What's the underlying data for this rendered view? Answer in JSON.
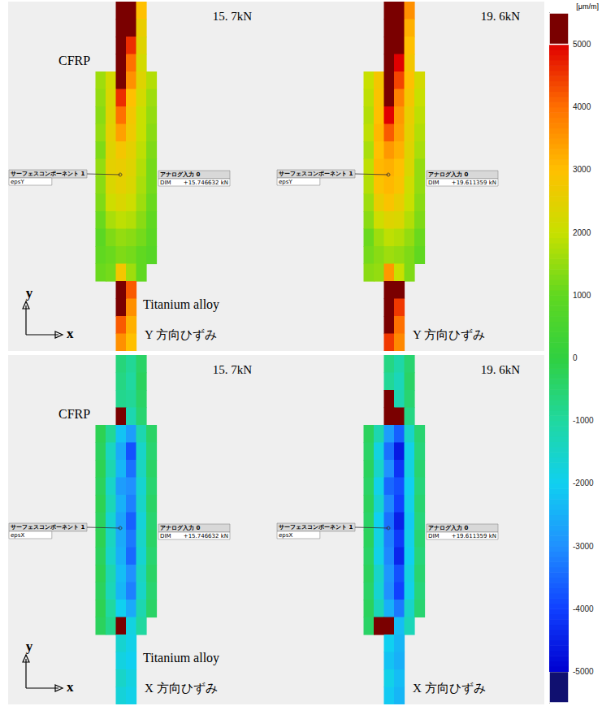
{
  "chart_data": {
    "type": "heatmap",
    "tick_labels": false,
    "color_bar": {
      "label": "[μm/m]",
      "range": [
        -5500,
        5500
      ],
      "color_range": [
        -5000,
        5000
      ],
      "ticks": [
        -5000,
        -4000,
        -3000,
        -2000,
        -1000,
        0,
        1000,
        2000,
        3000,
        4000,
        5000
      ]
    },
    "panels": [
      {
        "title": "15. 7kN",
        "caption": "Y 方向ひずみ",
        "upper_label": "CFRP",
        "lower_label": "Titanium alloy",
        "axis_names": [
          "x",
          "y"
        ],
        "probe_box": [
          "サーフェスコンポーネント 1",
          "epsY"
        ],
        "load_box": [
          "アナログ入力 0",
          "DIM",
          "+15.746632 kN"
        ],
        "cells": [
          [
            null,
            null,
            null,
            5800,
            5600,
            3000,
            null,
            null
          ],
          [
            null,
            null,
            null,
            5800,
            5200,
            2600,
            null,
            null
          ],
          [
            null,
            null,
            null,
            5800,
            4600,
            2400,
            null,
            null
          ],
          [
            null,
            null,
            null,
            5600,
            4000,
            2200,
            null,
            null
          ],
          [
            null,
            1600,
            2200,
            5200,
            3600,
            2400,
            1800,
            null
          ],
          [
            null,
            1500,
            2300,
            4600,
            3000,
            2200,
            1600,
            null
          ],
          [
            null,
            1400,
            2400,
            4000,
            2800,
            2000,
            1500,
            null
          ],
          [
            null,
            1500,
            2500,
            3400,
            2700,
            2000,
            1400,
            null
          ],
          [
            null,
            1300,
            2400,
            2800,
            2500,
            1900,
            1300,
            null
          ],
          [
            null,
            1500,
            2500,
            2600,
            2400,
            1800,
            1200,
            null
          ],
          [
            null,
            1400,
            2300,
            2500,
            2300,
            1700,
            1200,
            null
          ],
          [
            null,
            1300,
            2100,
            2300,
            2100,
            1600,
            1100,
            null
          ],
          [
            null,
            1100,
            1700,
            1900,
            1800,
            1400,
            1000,
            null
          ],
          [
            null,
            900,
            1300,
            1500,
            1400,
            1200,
            900,
            null
          ],
          [
            null,
            1000,
            1100,
            1300,
            1200,
            1000,
            800,
            null
          ],
          [
            null,
            1100,
            1200,
            2800,
            1600,
            1000,
            null,
            null
          ],
          [
            null,
            null,
            null,
            5800,
            4200,
            null,
            null,
            null
          ],
          [
            null,
            null,
            null,
            5400,
            3600,
            null,
            null,
            null
          ],
          [
            null,
            null,
            null,
            4200,
            3200,
            null,
            null,
            null
          ],
          [
            null,
            null,
            null,
            3600,
            3000,
            null,
            null,
            null
          ]
        ]
      },
      {
        "title": "19. 6kN",
        "caption": "Y 方向ひずみ",
        "probe_box": [
          "サーフェスコンポーネント 1",
          "epsY"
        ],
        "load_box": [
          "アナログ入力 0",
          "DIM",
          "+19.611359 kN"
        ],
        "cells": [
          [
            null,
            null,
            null,
            5800,
            5800,
            3600,
            null,
            null
          ],
          [
            null,
            null,
            null,
            5800,
            5800,
            3200,
            null,
            null
          ],
          [
            null,
            null,
            null,
            5800,
            5400,
            3000,
            null,
            null
          ],
          [
            null,
            null,
            null,
            5800,
            5000,
            2800,
            null,
            null
          ],
          [
            null,
            2000,
            2800,
            5800,
            4400,
            3000,
            2200,
            null
          ],
          [
            null,
            1900,
            2900,
            5600,
            3800,
            2800,
            2000,
            null
          ],
          [
            null,
            1800,
            3000,
            5000,
            3500,
            2600,
            1900,
            null
          ],
          [
            null,
            1900,
            3100,
            4200,
            3400,
            2500,
            1800,
            null
          ],
          [
            null,
            1700,
            3000,
            3500,
            3200,
            2400,
            1700,
            null
          ],
          [
            null,
            1900,
            3100,
            3200,
            3000,
            2300,
            1500,
            null
          ],
          [
            null,
            1800,
            2900,
            3100,
            2900,
            2100,
            1500,
            null
          ],
          [
            null,
            1600,
            2600,
            2900,
            2600,
            2000,
            1400,
            null
          ],
          [
            null,
            1400,
            2100,
            2400,
            2300,
            1800,
            1300,
            null
          ],
          [
            null,
            1100,
            1600,
            1900,
            1800,
            1500,
            1100,
            null
          ],
          [
            null,
            1200,
            1400,
            1600,
            1500,
            1300,
            1000,
            null
          ],
          [
            null,
            1400,
            1500,
            3500,
            2000,
            1300,
            null,
            null
          ],
          [
            null,
            null,
            null,
            5800,
            5200,
            null,
            null,
            null
          ],
          [
            null,
            null,
            null,
            5800,
            4500,
            null,
            null,
            null
          ],
          [
            null,
            null,
            null,
            5200,
            4000,
            null,
            null,
            null
          ],
          [
            null,
            null,
            null,
            4500,
            3700,
            null,
            null,
            null
          ]
        ]
      },
      {
        "title": "15. 7kN",
        "caption": "X 方向ひずみ",
        "upper_label": "CFRP",
        "lower_label": "Titanium alloy",
        "axis_names": [
          "x",
          "y"
        ],
        "probe_box": [
          "サーフェスコンポーネント 1",
          "epsX"
        ],
        "load_box": [
          "アナログ入力 0",
          "DIM",
          "+15.746632 kN"
        ],
        "cells": [
          [
            null,
            null,
            null,
            -600,
            -900,
            -400,
            null,
            null
          ],
          [
            null,
            null,
            null,
            -700,
            -1000,
            -300,
            null,
            null
          ],
          [
            null,
            null,
            null,
            -800,
            -900,
            -400,
            null,
            null
          ],
          [
            null,
            null,
            null,
            5800,
            -1200,
            -500,
            null,
            null
          ],
          [
            null,
            -200,
            -900,
            -2200,
            -2800,
            -1200,
            -400,
            null
          ],
          [
            null,
            -300,
            -1400,
            -2600,
            -3800,
            -1500,
            -500,
            null
          ],
          [
            null,
            -200,
            -1200,
            -2400,
            -3400,
            -1400,
            -400,
            null
          ],
          [
            null,
            -300,
            -1500,
            -2800,
            -3000,
            -1600,
            -500,
            null
          ],
          [
            null,
            -200,
            -1300,
            -2500,
            -3200,
            -1500,
            -400,
            null
          ],
          [
            null,
            -300,
            -1600,
            -2700,
            -3600,
            -1700,
            -500,
            null
          ],
          [
            null,
            -200,
            -1400,
            -2600,
            -3300,
            -1500,
            -400,
            null
          ],
          [
            null,
            -300,
            -1500,
            -2500,
            -3500,
            -1600,
            -500,
            null
          ],
          [
            null,
            -200,
            -1200,
            -2300,
            -3000,
            -1400,
            -400,
            null
          ],
          [
            null,
            -300,
            -1300,
            -2400,
            -3200,
            -1500,
            -500,
            null
          ],
          [
            null,
            -200,
            -1000,
            -2000,
            -2600,
            -1200,
            -400,
            null
          ],
          [
            null,
            -300,
            -800,
            5800,
            -1800,
            -1000,
            null,
            null
          ],
          [
            null,
            null,
            null,
            -1600,
            -1900,
            null,
            null,
            null
          ],
          [
            null,
            null,
            null,
            -1800,
            -2000,
            null,
            null,
            null
          ],
          [
            null,
            null,
            null,
            -1500,
            -1800,
            null,
            null,
            null
          ],
          [
            null,
            null,
            null,
            -1700,
            -1900,
            null,
            null,
            null
          ]
        ]
      },
      {
        "title": "19. 6kN",
        "caption": "X 方向ひずみ",
        "probe_box": [
          "サーフェスコンポーネント 1",
          "epsX"
        ],
        "load_box": [
          "アナログ入力 0",
          "DIM",
          "+19.611359 kN"
        ],
        "cells": [
          [
            null,
            null,
            null,
            -700,
            -1100,
            -500,
            null,
            null
          ],
          [
            null,
            null,
            null,
            -900,
            -1300,
            -400,
            null,
            null
          ],
          [
            null,
            null,
            null,
            5800,
            -1200,
            -500,
            null,
            null
          ],
          [
            null,
            null,
            null,
            5800,
            5800,
            -700,
            null,
            null
          ],
          [
            null,
            -300,
            -1200,
            -2800,
            -3600,
            -1500,
            -500,
            null
          ],
          [
            null,
            -400,
            -1800,
            -3400,
            -4600,
            -1900,
            -600,
            null
          ],
          [
            null,
            -300,
            -1500,
            -3000,
            -4200,
            -1800,
            -500,
            null
          ],
          [
            null,
            -400,
            -1900,
            -3500,
            -3800,
            -2000,
            -600,
            null
          ],
          [
            null,
            -300,
            -1600,
            -3100,
            -4000,
            -1900,
            -500,
            null
          ],
          [
            null,
            -400,
            -2000,
            -3400,
            -4500,
            -2100,
            -600,
            null
          ],
          [
            null,
            -300,
            -1800,
            -3200,
            -4100,
            -1900,
            -500,
            null
          ],
          [
            null,
            -400,
            -1900,
            -3100,
            -4400,
            -2000,
            -600,
            null
          ],
          [
            null,
            -300,
            -1500,
            -2900,
            -3800,
            -1800,
            -500,
            null
          ],
          [
            null,
            -400,
            -1600,
            -3000,
            -4000,
            -1900,
            -600,
            null
          ],
          [
            null,
            -300,
            -1300,
            -2500,
            -3300,
            -1500,
            -500,
            null
          ],
          [
            null,
            -400,
            5800,
            5800,
            -2300,
            -1300,
            null,
            null
          ],
          [
            null,
            null,
            null,
            -2000,
            -2400,
            null,
            null,
            null
          ],
          [
            null,
            null,
            null,
            -2200,
            -2500,
            null,
            null,
            null
          ],
          [
            null,
            null,
            null,
            -1900,
            -2300,
            null,
            null,
            null
          ],
          [
            null,
            null,
            null,
            -2100,
            -2400,
            null,
            null,
            null
          ]
        ]
      }
    ]
  }
}
